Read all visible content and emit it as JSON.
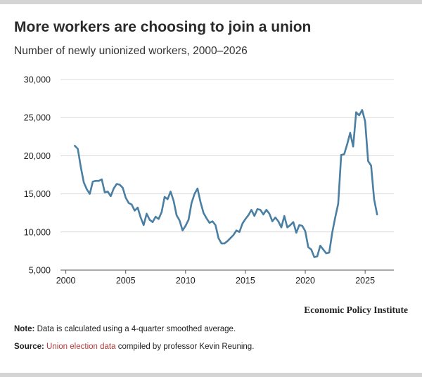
{
  "header": {
    "title": "More workers are choosing to join a union",
    "subtitle": "Number of newly unionized workers, 2000–2026"
  },
  "footer": {
    "brand": "Economic Policy Institute",
    "note_label": "Note:",
    "note_text": "Data is calculated using a 4-quarter smoothed average.",
    "source_label": "Source:",
    "source_link": "Union election data",
    "source_text": "compiled by professor Kevin Reuning."
  },
  "colors": {
    "line": "#4a7fa3",
    "grid": "#d9d9d9",
    "axis": "#555555",
    "link": "#b23a3a"
  },
  "chart_data": {
    "type": "line",
    "title": "More workers are choosing to join a union",
    "subtitle": "Number of newly unionized workers, 2000–2026",
    "xlabel": "",
    "ylabel": "",
    "xlim": [
      1999.2,
      2027.4
    ],
    "ylim": [
      5000,
      30000
    ],
    "xticks": [
      2000,
      2005,
      2010,
      2015,
      2020,
      2025
    ],
    "xtick_labels": [
      "2000",
      "2005",
      "2010",
      "2015",
      "2020",
      "2025"
    ],
    "yticks": [
      5000,
      10000,
      15000,
      20000,
      25000,
      30000
    ],
    "ytick_labels": [
      "5,000",
      "10,000",
      "15,000",
      "20,000",
      "25,000",
      "30,000"
    ],
    "grid": "horizontal",
    "legend": "none",
    "series": [
      {
        "x": [
          2000.75,
          2001.0,
          2001.25,
          2001.5,
          2001.75,
          2002.0,
          2002.25,
          2002.5,
          2002.75,
          2003.0,
          2003.25,
          2003.5,
          2003.75,
          2004.0,
          2004.25,
          2004.5,
          2004.75,
          2005.0,
          2005.25,
          2005.5,
          2005.75,
          2006.0,
          2006.25,
          2006.5,
          2006.75,
          2007.0,
          2007.25,
          2007.5,
          2007.75,
          2008.0,
          2008.25,
          2008.5,
          2008.75,
          2009.0,
          2009.25,
          2009.5,
          2009.75,
          2010.0,
          2010.25,
          2010.5,
          2010.75,
          2011.0,
          2011.25,
          2011.5,
          2011.75,
          2012.0,
          2012.25,
          2012.5,
          2012.75,
          2013.0,
          2013.25,
          2013.5,
          2013.75,
          2014.0,
          2014.25,
          2014.5,
          2014.75,
          2015.0,
          2015.25,
          2015.5,
          2015.75,
          2016.0,
          2016.25,
          2016.5,
          2016.75,
          2017.0,
          2017.25,
          2017.5,
          2017.75,
          2018.0,
          2018.25,
          2018.5,
          2018.75,
          2019.0,
          2019.25,
          2019.5,
          2019.75,
          2020.0,
          2020.25,
          2020.5,
          2020.75,
          2021.0,
          2021.25,
          2021.5,
          2021.75,
          2022.0,
          2022.25,
          2022.5,
          2022.75,
          2023.0,
          2023.25,
          2023.5,
          2023.75,
          2024.0,
          2024.25,
          2024.5,
          2024.75,
          2025.0,
          2025.25,
          2025.5,
          2025.75,
          2026.0
        ],
        "y": [
          21300,
          20900,
          18500,
          16500,
          15600,
          15000,
          16600,
          16700,
          16700,
          16900,
          15200,
          15300,
          14700,
          15700,
          16300,
          16200,
          15800,
          14500,
          13800,
          13600,
          12800,
          13200,
          11900,
          10900,
          12400,
          11600,
          11300,
          12000,
          11700,
          12600,
          14600,
          14300,
          15300,
          14100,
          12200,
          11500,
          10200,
          10800,
          11600,
          13800,
          15000,
          15700,
          13900,
          12500,
          11800,
          11200,
          11400,
          10900,
          9200,
          8500,
          8500,
          8800,
          9200,
          9600,
          10200,
          10000,
          11100,
          11700,
          12200,
          12900,
          12100,
          13000,
          12900,
          12300,
          12900,
          12400,
          11400,
          11900,
          11400,
          10600,
          12100,
          10600,
          10900,
          11300,
          9900,
          10900,
          10800,
          10100,
          8000,
          7700,
          6700,
          6800,
          8200,
          7700,
          7200,
          7300,
          9900,
          11900,
          13700,
          20100,
          20200,
          21500,
          23000,
          21200,
          25700,
          25300,
          26000,
          24500,
          19300,
          18700,
          14300,
          12300
        ]
      }
    ]
  }
}
